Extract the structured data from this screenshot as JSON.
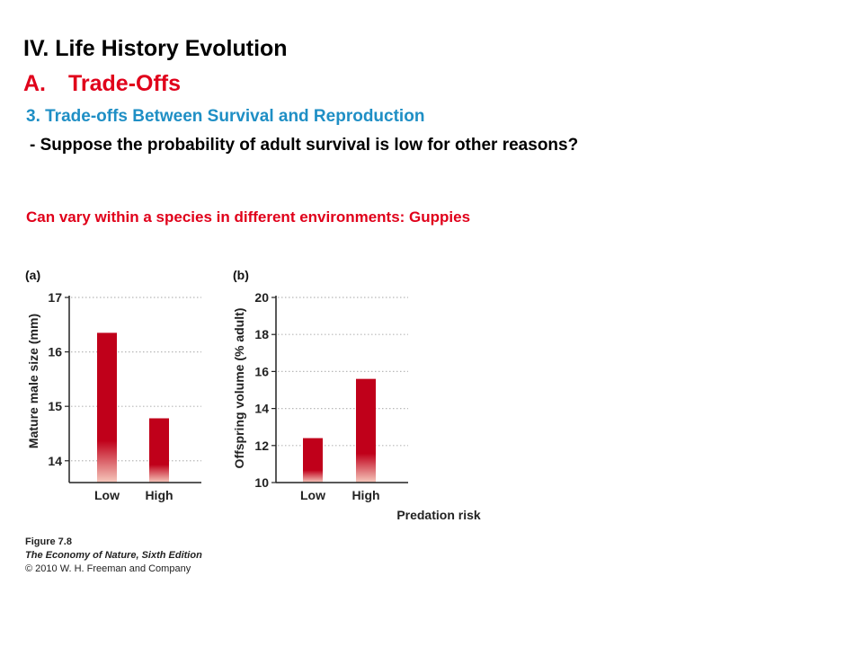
{
  "slide": {
    "heading": "IV. Life History Evolution",
    "subhead_marker": "A.",
    "subhead": "Trade-Offs",
    "section": "3. Trade-offs Between Survival and Reproduction",
    "question": "- Suppose the probability of adult survival is low for other reasons?",
    "note": "Can vary within a species in different environments: Guppies"
  },
  "caption": {
    "figure": "Figure 7.8",
    "book": "The Economy of Nature, Sixth Edition",
    "copyright": "© 2010 W. H. Freeman and Company"
  },
  "colors": {
    "bar": "#c0001a",
    "bar_fade": "#f6c9bd",
    "grid": "#b8b8b8",
    "heading_accent": "#e0001a",
    "section_blue": "#1f8fc5"
  },
  "chart_data": [
    {
      "type": "bar",
      "panel_label": "(a)",
      "categories": [
        "Low",
        "High"
      ],
      "values": [
        16.35,
        14.78
      ],
      "ylabel": "Mature male size (mm)",
      "xlabel": "",
      "ylim": [
        13.6,
        17
      ],
      "yticks": [
        14,
        15,
        16,
        17
      ],
      "grid": true
    },
    {
      "type": "bar",
      "panel_label": "(b)",
      "categories": [
        "Low",
        "High"
      ],
      "values": [
        12.4,
        15.6
      ],
      "ylabel": "Offspring volume (% adult)",
      "xlabel": "Predation risk",
      "ylim": [
        10,
        20
      ],
      "yticks": [
        10,
        12,
        14,
        16,
        18,
        20
      ],
      "grid": true
    }
  ]
}
